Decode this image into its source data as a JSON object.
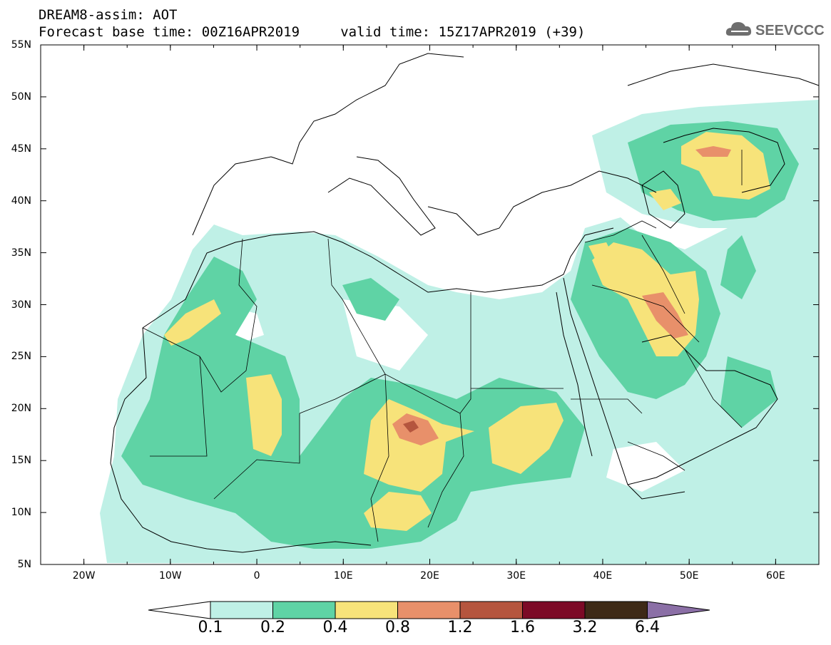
{
  "title": {
    "line1": "DREAM8-assim: AOT",
    "line2": "Forecast base time: 00Z16APR2019     valid time: 15Z17APR2019 (+39)"
  },
  "logo": {
    "text": "SEEVCCC",
    "icon": "cloud-icon"
  },
  "map": {
    "variable": "AOT",
    "lon_range": [
      -25,
      65
    ],
    "lat_range": [
      5,
      55
    ],
    "lat_labels": [
      "55N",
      "50N",
      "45N",
      "40N",
      "35N",
      "30N",
      "25N",
      "20N",
      "15N",
      "10N",
      "5N"
    ],
    "lon_labels": [
      "20W",
      "10W",
      "0",
      "10E",
      "20E",
      "30E",
      "40E",
      "50E",
      "60E"
    ]
  },
  "colorbar": {
    "labels": [
      "0.1",
      "0.2",
      "0.4",
      "0.8",
      "1.2",
      "1.6",
      "3.2",
      "6.4"
    ],
    "colors": [
      "#ffffff",
      "#bff0e6",
      "#5fd3a5",
      "#f7e37a",
      "#e8906a",
      "#b5553e",
      "#7c0a26",
      "#3e2a17",
      "#8b6fa6"
    ]
  }
}
